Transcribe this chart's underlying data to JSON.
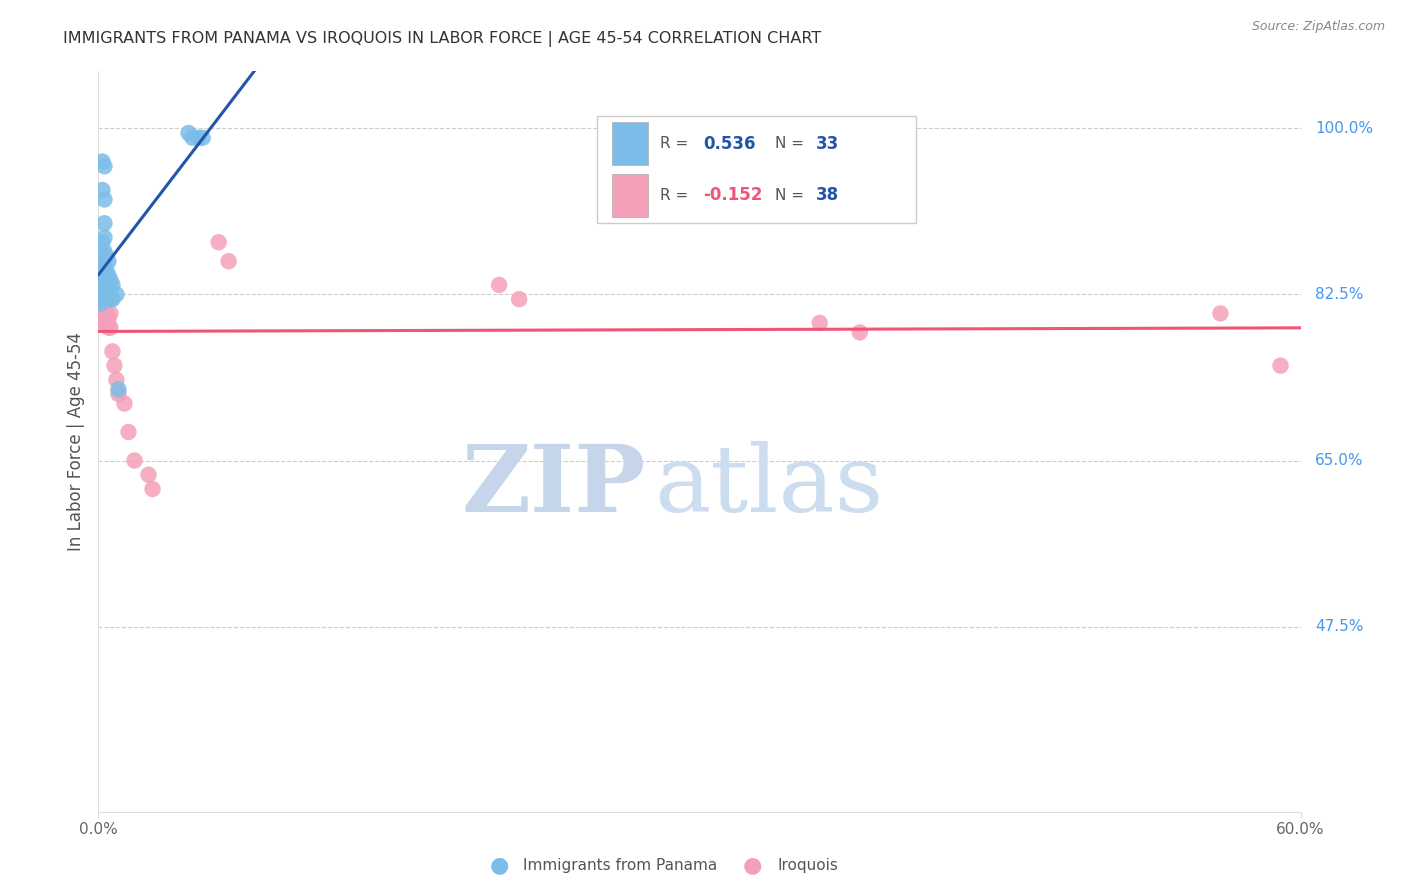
{
  "title": "IMMIGRANTS FROM PANAMA VS IROQUOIS IN LABOR FORCE | AGE 45-54 CORRELATION CHART",
  "source": "Source: ZipAtlas.com",
  "ylabel": "In Labor Force | Age 45-54",
  "yticks": [
    100.0,
    82.5,
    65.0,
    47.5
  ],
  "ytick_labels": [
    "100.0%",
    "82.5%",
    "65.0%",
    "47.5%"
  ],
  "xmin": 0.0,
  "xmax": 0.6,
  "ymin": 28.0,
  "ymax": 106.0,
  "blue_label": "Immigrants from Panama",
  "pink_label": "Iroquois",
  "blue_R": "0.536",
  "blue_N": "33",
  "pink_R": "-0.152",
  "pink_N": "38",
  "blue_x": [
    0.001,
    0.001,
    0.001,
    0.001,
    0.001,
    0.002,
    0.002,
    0.002,
    0.002,
    0.003,
    0.003,
    0.003,
    0.003,
    0.003,
    0.003,
    0.004,
    0.004,
    0.004,
    0.004,
    0.005,
    0.005,
    0.005,
    0.006,
    0.006,
    0.006,
    0.007,
    0.007,
    0.009,
    0.01,
    0.045,
    0.047,
    0.05,
    0.052
  ],
  "blue_y": [
    83.5,
    84.0,
    82.5,
    82.0,
    81.5,
    96.5,
    93.5,
    88.0,
    86.0,
    96.0,
    92.5,
    90.0,
    88.5,
    87.0,
    85.5,
    86.5,
    85.0,
    84.0,
    83.0,
    86.0,
    84.5,
    83.5,
    84.0,
    83.0,
    82.0,
    83.5,
    82.0,
    82.5,
    72.5,
    99.5,
    99.0,
    99.0,
    99.0
  ],
  "pink_x": [
    0.001,
    0.001,
    0.001,
    0.002,
    0.002,
    0.002,
    0.002,
    0.003,
    0.003,
    0.003,
    0.003,
    0.003,
    0.004,
    0.004,
    0.004,
    0.004,
    0.004,
    0.005,
    0.005,
    0.006,
    0.006,
    0.007,
    0.008,
    0.009,
    0.01,
    0.013,
    0.015,
    0.018,
    0.025,
    0.027,
    0.06,
    0.065,
    0.2,
    0.21,
    0.36,
    0.38,
    0.56,
    0.59
  ],
  "pink_y": [
    82.5,
    81.0,
    79.5,
    84.5,
    83.5,
    82.0,
    80.0,
    84.0,
    83.0,
    82.0,
    81.0,
    80.0,
    83.5,
    82.5,
    81.5,
    80.5,
    79.5,
    80.0,
    79.0,
    80.5,
    79.0,
    76.5,
    75.0,
    73.5,
    72.0,
    71.0,
    68.0,
    65.0,
    63.5,
    62.0,
    88.0,
    86.0,
    83.5,
    82.0,
    79.5,
    78.5,
    80.5,
    75.0
  ],
  "background_color": "#ffffff",
  "blue_scatter_color": "#7bbde8",
  "pink_scatter_color": "#f4a0b8",
  "blue_line_color": "#2255aa",
  "pink_line_color": "#ee5577",
  "grid_color": "#cccccc",
  "title_color": "#333333",
  "axis_label_color": "#555555",
  "right_tick_color": "#4499ee",
  "watermark_zip_color": "#c8d8ee",
  "watermark_atlas_color": "#c8d8ee"
}
